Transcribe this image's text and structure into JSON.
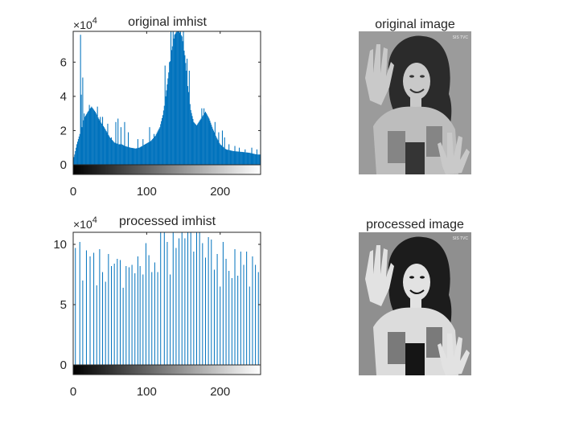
{
  "chart_data": [
    {
      "type": "bar",
      "title": "original imhist",
      "exponent_label": {
        "base": "×10",
        "power": "4"
      },
      "xlim": [
        0,
        255
      ],
      "ylim": [
        0,
        7.8
      ],
      "x_ticks": [
        "0",
        "100",
        "200"
      ],
      "x_tick_values": [
        0,
        100,
        200
      ],
      "y_ticks": [
        "0",
        "2",
        "4",
        "6"
      ],
      "y_tick_values": [
        0,
        2,
        4,
        6
      ],
      "bar_color": "#0072BD",
      "colorbar": "grayscale",
      "grid": false,
      "bins": 256,
      "shape": "dense",
      "anchors": [
        [
          0,
          0.3
        ],
        [
          2,
          0.6
        ],
        [
          5,
          1.2
        ],
        [
          9,
          1.8
        ],
        [
          12,
          2.2
        ],
        [
          16,
          2.8
        ],
        [
          20,
          3.1
        ],
        [
          25,
          3.4
        ],
        [
          30,
          3.1
        ],
        [
          36,
          2.6
        ],
        [
          42,
          2.2
        ],
        [
          50,
          1.6
        ],
        [
          56,
          1.3
        ],
        [
          62,
          1.2
        ],
        [
          66,
          1.2
        ],
        [
          70,
          1.1
        ],
        [
          78,
          1.0
        ],
        [
          85,
          0.95
        ],
        [
          90,
          1.0
        ],
        [
          98,
          1.2
        ],
        [
          106,
          1.4
        ],
        [
          112,
          1.7
        ],
        [
          118,
          2.2
        ],
        [
          122,
          2.9
        ],
        [
          126,
          4.0
        ],
        [
          130,
          5.4
        ],
        [
          134,
          6.7
        ],
        [
          138,
          7.6
        ],
        [
          141,
          7.8
        ],
        [
          144,
          7.8
        ],
        [
          148,
          7.5
        ],
        [
          152,
          6.4
        ],
        [
          156,
          4.6
        ],
        [
          160,
          3.2
        ],
        [
          164,
          2.5
        ],
        [
          168,
          2.3
        ],
        [
          174,
          2.7
        ],
        [
          180,
          3.1
        ],
        [
          185,
          2.7
        ],
        [
          190,
          2.1
        ],
        [
          195,
          1.6
        ],
        [
          200,
          1.2
        ],
        [
          208,
          0.9
        ],
        [
          218,
          0.8
        ],
        [
          230,
          0.75
        ],
        [
          240,
          0.7
        ],
        [
          250,
          0.6
        ],
        [
          255,
          0.6
        ]
      ],
      "spikes": [
        [
          6,
          1.2
        ],
        [
          10,
          7.6
        ],
        [
          11,
          4.1
        ],
        [
          13,
          5.1
        ],
        [
          14,
          2.6
        ],
        [
          15,
          3.0
        ],
        [
          19,
          2.9
        ],
        [
          22,
          3.5
        ],
        [
          24,
          2.3
        ],
        [
          27,
          2.4
        ],
        [
          28,
          3.0
        ],
        [
          31,
          2.5
        ],
        [
          33,
          3.4
        ],
        [
          37,
          2.8
        ],
        [
          40,
          2.8
        ],
        [
          47,
          2.4
        ],
        [
          52,
          1.6
        ],
        [
          58,
          2.5
        ],
        [
          61,
          2.7
        ],
        [
          65,
          2.2
        ],
        [
          70,
          2.5
        ],
        [
          75,
          1.9
        ],
        [
          88,
          1.5
        ],
        [
          95,
          1.5
        ],
        [
          104,
          2.2
        ],
        [
          110,
          1.8
        ],
        [
          119,
          2.2
        ],
        [
          123,
          2.4
        ],
        [
          125,
          5.8
        ],
        [
          128,
          4.5
        ],
        [
          131,
          6.0
        ],
        [
          133,
          7.8
        ],
        [
          136,
          7.8
        ],
        [
          142,
          7.8
        ],
        [
          146,
          7.8
        ],
        [
          150,
          7.8
        ],
        [
          155,
          6.2
        ],
        [
          158,
          5.5
        ],
        [
          175,
          3.3
        ],
        [
          178,
          3.3
        ],
        [
          186,
          2.4
        ],
        [
          193,
          2.5
        ],
        [
          198,
          1.9
        ],
        [
          203,
          2.0
        ],
        [
          206,
          1.6
        ],
        [
          212,
          1.2
        ],
        [
          220,
          1.1
        ],
        [
          226,
          1.0
        ],
        [
          234,
          0.9
        ],
        [
          243,
          1.0
        ],
        [
          250,
          0.9
        ],
        [
          255,
          3.5
        ]
      ]
    },
    {
      "type": "bar",
      "title": "processed imhist",
      "exponent_label": {
        "base": "×10",
        "power": "4"
      },
      "xlim": [
        0,
        255
      ],
      "ylim": [
        0,
        11
      ],
      "x_ticks": [
        "0",
        "100",
        "200"
      ],
      "x_tick_values": [
        0,
        100,
        200
      ],
      "y_ticks": [
        "0",
        "5",
        "10"
      ],
      "y_tick_values": [
        0,
        5,
        10
      ],
      "bar_color": "#0072BD",
      "colorbar": "grayscale",
      "grid": false,
      "bins": 256,
      "shape": "sparse",
      "bars": [
        [
          3,
          9.7
        ],
        [
          9,
          10.2
        ],
        [
          13,
          7.0
        ],
        [
          18,
          9.5
        ],
        [
          23,
          9.0
        ],
        [
          28,
          9.3
        ],
        [
          32,
          6.6
        ],
        [
          36,
          9.6
        ],
        [
          40,
          7.7
        ],
        [
          44,
          6.9
        ],
        [
          48,
          9.2
        ],
        [
          52,
          8.2
        ],
        [
          56,
          8.4
        ],
        [
          60,
          8.8
        ],
        [
          64,
          8.7
        ],
        [
          68,
          6.4
        ],
        [
          72,
          8.2
        ],
        [
          76,
          8.1
        ],
        [
          80,
          8.3
        ],
        [
          84,
          7.6
        ],
        [
          88,
          9.0
        ],
        [
          91,
          8.2
        ],
        [
          95,
          7.5
        ],
        [
          99,
          10.1
        ],
        [
          103,
          9.1
        ],
        [
          107,
          7.7
        ],
        [
          111,
          8.5
        ],
        [
          115,
          7.7
        ],
        [
          119,
          11.0
        ],
        [
          124,
          11.0
        ],
        [
          128,
          10.2
        ],
        [
          132,
          7.5
        ],
        [
          136,
          11.0
        ],
        [
          140,
          9.7
        ],
        [
          144,
          10.5
        ],
        [
          148,
          11.0
        ],
        [
          152,
          10.5
        ],
        [
          156,
          11.0
        ],
        [
          160,
          11.0
        ],
        [
          164,
          9.4
        ],
        [
          168,
          11.0
        ],
        [
          172,
          11.0
        ],
        [
          176,
          10.1
        ],
        [
          180,
          8.9
        ],
        [
          184,
          10.6
        ],
        [
          188,
          10.4
        ],
        [
          192,
          7.9
        ],
        [
          196,
          9.2
        ],
        [
          200,
          6.5
        ],
        [
          204,
          10.2
        ],
        [
          208,
          8.8
        ],
        [
          212,
          7.8
        ],
        [
          216,
          7.2
        ],
        [
          220,
          9.6
        ],
        [
          224,
          7.4
        ],
        [
          228,
          9.4
        ],
        [
          232,
          8.3
        ],
        [
          236,
          9.4
        ],
        [
          240,
          6.5
        ],
        [
          244,
          9.0
        ],
        [
          248,
          8.3
        ],
        [
          252,
          7.7
        ]
      ]
    }
  ],
  "images": [
    {
      "title": "original image",
      "watermark": "SIS TVC",
      "tone": "original"
    },
    {
      "title": "processed image",
      "watermark": "SIS TVC",
      "tone": "processed"
    }
  ]
}
